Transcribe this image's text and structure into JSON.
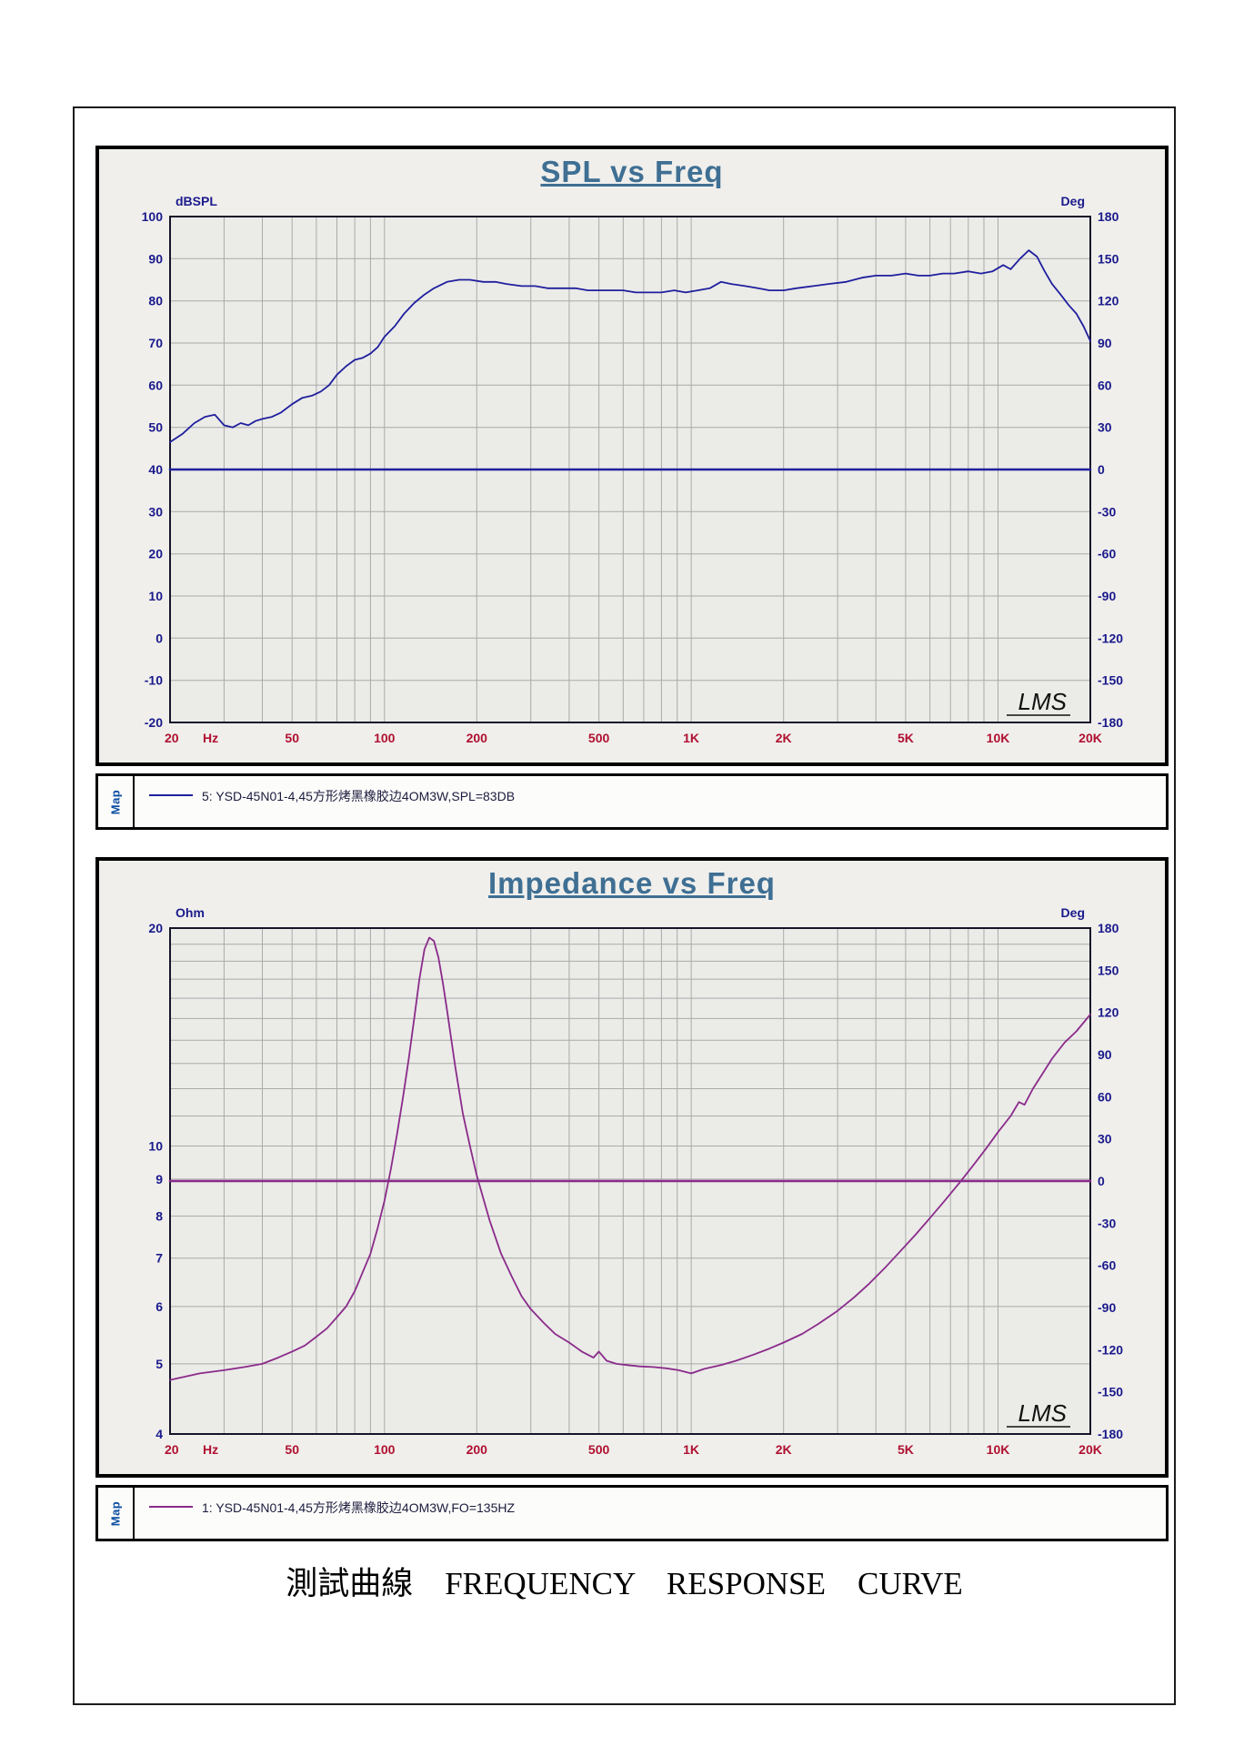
{
  "caption": "測試曲線　FREQUENCY　RESPONSE　CURVE",
  "chart_data": [
    {
      "id": "spl",
      "type": "line",
      "title": "SPL vs Freq",
      "map_label": "Map",
      "logo": "LMS",
      "legend": "5: YSD-45N01-4,45方形烤黑橡胶边4OM3W,SPL=83DB",
      "legend_color": "#1f1f9e",
      "x_axis": {
        "scale": "log",
        "min": 20,
        "max": 20000,
        "unit": "Hz",
        "label_color": "#b01030",
        "ticks": [
          {
            "v": 20,
            "label": "20"
          },
          {
            "v": 50,
            "label": "50"
          },
          {
            "v": 100,
            "label": "100"
          },
          {
            "v": 200,
            "label": "200"
          },
          {
            "v": 500,
            "label": "500"
          },
          {
            "v": 1000,
            "label": "1K"
          },
          {
            "v": 2000,
            "label": "2K"
          },
          {
            "v": 5000,
            "label": "5K"
          },
          {
            "v": 10000,
            "label": "10K"
          },
          {
            "v": 20000,
            "label": "20K"
          }
        ],
        "grid": [
          20,
          30,
          40,
          50,
          60,
          70,
          80,
          90,
          100,
          200,
          300,
          400,
          500,
          600,
          700,
          800,
          900,
          1000,
          2000,
          3000,
          4000,
          5000,
          6000,
          7000,
          8000,
          9000,
          10000,
          20000
        ]
      },
      "left_axis": {
        "scale": "linear",
        "min": -20,
        "max": 100,
        "unit": "dBSPL",
        "label_color": "#1a1a8c",
        "ticks": [
          100,
          90,
          80,
          70,
          60,
          50,
          40,
          30,
          20,
          10,
          0,
          -10,
          -20
        ],
        "grid": [
          100,
          90,
          80,
          70,
          60,
          50,
          40,
          30,
          20,
          10,
          0,
          -10,
          -20
        ]
      },
      "right_axis": {
        "scale": "linear",
        "min": -180,
        "max": 180,
        "unit": "Deg",
        "label_color": "#1a1a8c",
        "ticks": [
          180,
          150,
          120,
          90,
          60,
          30,
          0,
          -30,
          -60,
          -90,
          -120,
          -150,
          -180
        ]
      },
      "series": [
        {
          "name": "spl-curve",
          "axis": "left",
          "color": "#1f1f9e",
          "width": 1.8,
          "points": [
            [
              20,
              46.5
            ],
            [
              22,
              48.5
            ],
            [
              24,
              51
            ],
            [
              26,
              52.5
            ],
            [
              28,
              53
            ],
            [
              30,
              50.5
            ],
            [
              32,
              50
            ],
            [
              34,
              51
            ],
            [
              36,
              50.5
            ],
            [
              38,
              51.5
            ],
            [
              40,
              52
            ],
            [
              43,
              52.5
            ],
            [
              46,
              53.5
            ],
            [
              50,
              55.5
            ],
            [
              54,
              57
            ],
            [
              58,
              57.5
            ],
            [
              62,
              58.5
            ],
            [
              66,
              60
            ],
            [
              70,
              62.5
            ],
            [
              75,
              64.5
            ],
            [
              80,
              66
            ],
            [
              85,
              66.5
            ],
            [
              90,
              67.5
            ],
            [
              95,
              69
            ],
            [
              100,
              71.5
            ],
            [
              108,
              74
            ],
            [
              116,
              77
            ],
            [
              125,
              79.5
            ],
            [
              135,
              81.5
            ],
            [
              145,
              83
            ],
            [
              160,
              84.5
            ],
            [
              175,
              85
            ],
            [
              190,
              85
            ],
            [
              210,
              84.5
            ],
            [
              230,
              84.5
            ],
            [
              250,
              84
            ],
            [
              280,
              83.5
            ],
            [
              310,
              83.5
            ],
            [
              340,
              83
            ],
            [
              380,
              83
            ],
            [
              420,
              83
            ],
            [
              460,
              82.5
            ],
            [
              500,
              82.5
            ],
            [
              550,
              82.5
            ],
            [
              600,
              82.5
            ],
            [
              660,
              82
            ],
            [
              720,
              82
            ],
            [
              800,
              82
            ],
            [
              880,
              82.5
            ],
            [
              960,
              82
            ],
            [
              1050,
              82.5
            ],
            [
              1150,
              83
            ],
            [
              1250,
              84.5
            ],
            [
              1350,
              84
            ],
            [
              1500,
              83.5
            ],
            [
              1650,
              83
            ],
            [
              1800,
              82.5
            ],
            [
              2000,
              82.5
            ],
            [
              2200,
              83
            ],
            [
              2500,
              83.5
            ],
            [
              2800,
              84
            ],
            [
              3200,
              84.5
            ],
            [
              3600,
              85.5
            ],
            [
              4000,
              86
            ],
            [
              4500,
              86
            ],
            [
              5000,
              86.5
            ],
            [
              5500,
              86
            ],
            [
              6000,
              86
            ],
            [
              6600,
              86.5
            ],
            [
              7200,
              86.5
            ],
            [
              8000,
              87
            ],
            [
              8800,
              86.5
            ],
            [
              9600,
              87
            ],
            [
              10400,
              88.5
            ],
            [
              11000,
              87.5
            ],
            [
              11800,
              90
            ],
            [
              12600,
              92
            ],
            [
              13400,
              90.5
            ],
            [
              14200,
              87
            ],
            [
              15000,
              84
            ],
            [
              16000,
              81.5
            ],
            [
              17000,
              79
            ],
            [
              18000,
              77
            ],
            [
              19000,
              74
            ],
            [
              20000,
              70.5
            ]
          ]
        },
        {
          "name": "phase-zero-baseline",
          "axis": "right",
          "color": "#1f1f9e",
          "width": 2.6,
          "points": [
            [
              20,
              0
            ],
            [
              20000,
              0
            ]
          ]
        }
      ]
    },
    {
      "id": "impedance",
      "type": "line",
      "title": "Impedance vs Freq",
      "map_label": "Map",
      "logo": "LMS",
      "legend": "1: YSD-45N01-4,45方形烤黑橡胶边4OM3W,FO=135HZ",
      "legend_color": "#8a2b8a",
      "x_axis": {
        "scale": "log",
        "min": 20,
        "max": 20000,
        "unit": "Hz",
        "label_color": "#b01030",
        "ticks": [
          {
            "v": 20,
            "label": "20"
          },
          {
            "v": 50,
            "label": "50"
          },
          {
            "v": 100,
            "label": "100"
          },
          {
            "v": 200,
            "label": "200"
          },
          {
            "v": 500,
            "label": "500"
          },
          {
            "v": 1000,
            "label": "1K"
          },
          {
            "v": 2000,
            "label": "2K"
          },
          {
            "v": 5000,
            "label": "5K"
          },
          {
            "v": 10000,
            "label": "10K"
          },
          {
            "v": 20000,
            "label": "20K"
          }
        ],
        "grid": [
          20,
          30,
          40,
          50,
          60,
          70,
          80,
          90,
          100,
          200,
          300,
          400,
          500,
          600,
          700,
          800,
          900,
          1000,
          2000,
          3000,
          4000,
          5000,
          6000,
          7000,
          8000,
          9000,
          10000,
          20000
        ]
      },
      "left_axis": {
        "scale": "log",
        "min": 4,
        "max": 20,
        "unit": "Ohm",
        "label_color": "#1a1a8c",
        "ticks": [
          20,
          10,
          9,
          8,
          7,
          6,
          5,
          4
        ],
        "grid": [
          4,
          5,
          6,
          7,
          8,
          9,
          10,
          11,
          12,
          13,
          14,
          15,
          16,
          17,
          18,
          19,
          20
        ]
      },
      "right_axis": {
        "scale": "linear",
        "min": -180,
        "max": 180,
        "unit": "Deg",
        "label_color": "#1a1a8c",
        "ticks": [
          180,
          150,
          120,
          90,
          60,
          30,
          0,
          -30,
          -60,
          -90,
          -120,
          -150,
          -180
        ]
      },
      "series": [
        {
          "name": "impedance-curve",
          "axis": "left",
          "color": "#8a2b8a",
          "width": 1.8,
          "points": [
            [
              20,
              4.75
            ],
            [
              25,
              4.85
            ],
            [
              30,
              4.9
            ],
            [
              35,
              4.95
            ],
            [
              40,
              5
            ],
            [
              45,
              5.1
            ],
            [
              50,
              5.2
            ],
            [
              55,
              5.3
            ],
            [
              60,
              5.45
            ],
            [
              65,
              5.6
            ],
            [
              70,
              5.8
            ],
            [
              75,
              6
            ],
            [
              80,
              6.3
            ],
            [
              85,
              6.7
            ],
            [
              90,
              7.1
            ],
            [
              95,
              7.7
            ],
            [
              100,
              8.4
            ],
            [
              105,
              9.3
            ],
            [
              110,
              10.4
            ],
            [
              115,
              11.7
            ],
            [
              120,
              13.2
            ],
            [
              125,
              15
            ],
            [
              130,
              17
            ],
            [
              135,
              18.7
            ],
            [
              140,
              19.4
            ],
            [
              145,
              19.2
            ],
            [
              150,
              18.2
            ],
            [
              155,
              16.8
            ],
            [
              160,
              15.4
            ],
            [
              170,
              12.9
            ],
            [
              180,
              11.1
            ],
            [
              190,
              10
            ],
            [
              200,
              9.1
            ],
            [
              220,
              7.9
            ],
            [
              240,
              7.1
            ],
            [
              260,
              6.6
            ],
            [
              280,
              6.2
            ],
            [
              300,
              5.95
            ],
            [
              330,
              5.7
            ],
            [
              360,
              5.5
            ],
            [
              400,
              5.35
            ],
            [
              440,
              5.2
            ],
            [
              480,
              5.1
            ],
            [
              500,
              5.2
            ],
            [
              530,
              5.05
            ],
            [
              570,
              5
            ],
            [
              620,
              4.98
            ],
            [
              680,
              4.96
            ],
            [
              750,
              4.95
            ],
            [
              830,
              4.93
            ],
            [
              910,
              4.9
            ],
            [
              1000,
              4.85
            ],
            [
              1100,
              4.92
            ],
            [
              1250,
              4.98
            ],
            [
              1400,
              5.05
            ],
            [
              1600,
              5.15
            ],
            [
              1800,
              5.25
            ],
            [
              2000,
              5.35
            ],
            [
              2300,
              5.5
            ],
            [
              2600,
              5.68
            ],
            [
              3000,
              5.92
            ],
            [
              3400,
              6.18
            ],
            [
              3800,
              6.45
            ],
            [
              4300,
              6.8
            ],
            [
              4800,
              7.15
            ],
            [
              5400,
              7.55
            ],
            [
              6000,
              7.95
            ],
            [
              6700,
              8.4
            ],
            [
              7500,
              8.9
            ],
            [
              8300,
              9.4
            ],
            [
              9200,
              9.95
            ],
            [
              10000,
              10.45
            ],
            [
              11000,
              11
            ],
            [
              11700,
              11.5
            ],
            [
              12200,
              11.4
            ],
            [
              13000,
              12
            ],
            [
              14000,
              12.6
            ],
            [
              15000,
              13.2
            ],
            [
              16500,
              13.9
            ],
            [
              18000,
              14.4
            ],
            [
              19000,
              14.8
            ],
            [
              20000,
              15.2
            ]
          ]
        },
        {
          "name": "phase-zero-baseline",
          "axis": "right",
          "color": "#8a2b8a",
          "width": 2.6,
          "points": [
            [
              20,
              0
            ],
            [
              20000,
              0
            ]
          ]
        }
      ]
    }
  ]
}
